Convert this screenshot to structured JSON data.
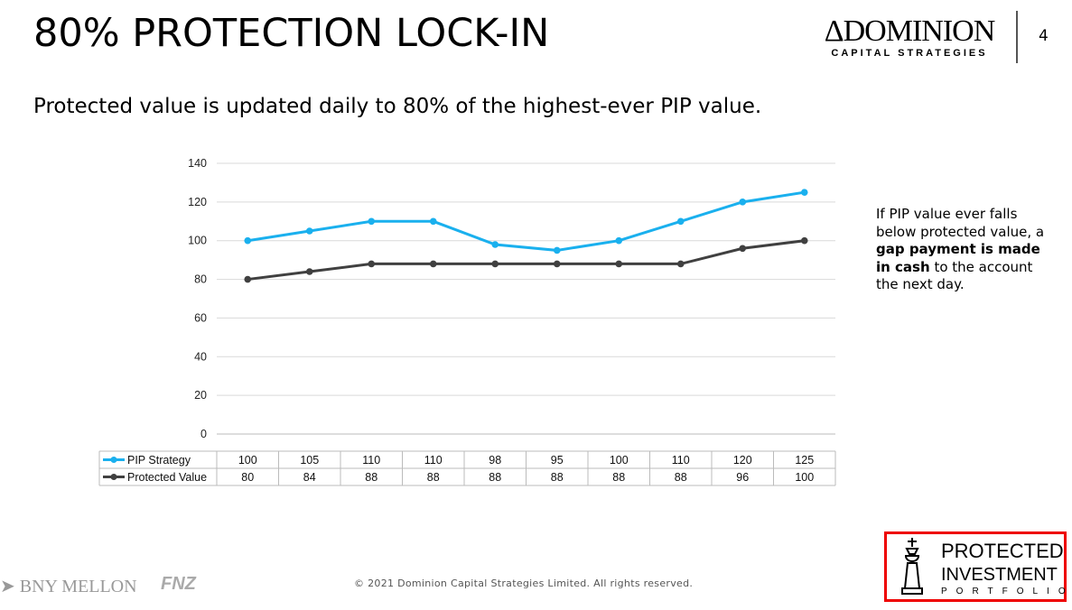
{
  "header": {
    "title": "80% PROTECTION LOCK-IN",
    "page_number": "4",
    "logo_main": "ΔDOMINION",
    "logo_sub": "CAPITAL STRATEGIES"
  },
  "subtitle": "Protected value is updated daily to 80% of the highest-ever PIP value.",
  "note": {
    "part1": "If PIP value ever falls below protected value, a ",
    "bold": "gap payment is made in cash",
    "part2": " to the account the next day."
  },
  "footer": {
    "copyright": "© 2021 Dominion Capital Strategies Limited.  All rights reserved.",
    "partner1": "BNY MELLON",
    "partner2": "FNZ"
  },
  "badge": {
    "line1": "PROTECTED",
    "line2": "INVESTMENT",
    "line3": "PORTFOLIO"
  },
  "chart_data": {
    "type": "line",
    "ylim": [
      0,
      140
    ],
    "yticks": [
      0,
      20,
      40,
      60,
      80,
      100,
      120,
      140
    ],
    "grid": true,
    "legend": "data-table",
    "categories": [
      "",
      "",
      "",
      "",
      "",
      "",
      "",
      "",
      "",
      ""
    ],
    "series": [
      {
        "name": "PIP Strategy",
        "color": "#1ab0ee",
        "values": [
          100,
          105,
          110,
          110,
          98,
          95,
          100,
          110,
          120,
          125
        ]
      },
      {
        "name": "Protected Value",
        "color": "#404040",
        "values": [
          80,
          84,
          88,
          88,
          88,
          88,
          88,
          88,
          96,
          100
        ]
      }
    ]
  }
}
